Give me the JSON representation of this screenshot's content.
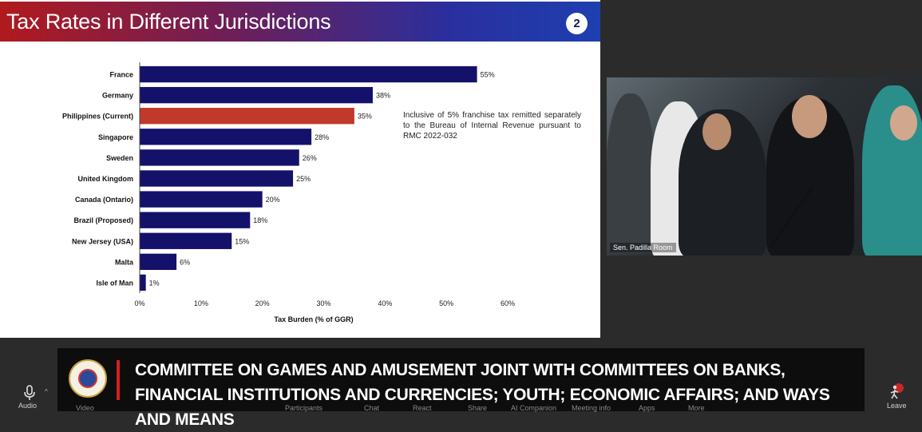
{
  "slide": {
    "title": "Tax Rates in Different Jurisdictions",
    "number": "2",
    "note": "Inclusive of 5% franchise tax remitted separately to the Bureau of Internal Revenue pursuant to RMC 2022-032"
  },
  "chart_data": {
    "type": "bar",
    "orientation": "horizontal",
    "categories": [
      "France",
      "Germany",
      "Philippines (Current)",
      "Singapore",
      "Sweden",
      "United Kingdom",
      "Canada (Ontario)",
      "Brazil (Proposed)",
      "New Jersey (USA)",
      "Malta",
      "Isle of Man"
    ],
    "values": [
      55,
      38,
      35,
      28,
      26,
      25,
      20,
      18,
      15,
      6,
      1
    ],
    "value_labels": [
      "55%",
      "38%",
      "35%",
      "28%",
      "26%",
      "25%",
      "20%",
      "18%",
      "15%",
      "6%",
      "1%"
    ],
    "highlight_index": 2,
    "xlabel": "Tax Burden (% of GGR)",
    "xlim": [
      0,
      60
    ],
    "xticks": [
      0,
      10,
      20,
      30,
      40,
      50,
      60
    ],
    "xtick_labels": [
      "0%",
      "10%",
      "20%",
      "30%",
      "40%",
      "50%",
      "60%"
    ],
    "grid": false,
    "colors": {
      "bar": "#14116b",
      "highlight": "#c0392b"
    }
  },
  "video": {
    "room_label": "Sen. Padilla Room"
  },
  "banner": {
    "text": "COMMITTEE ON GAMES AND AMUSEMENT JOINT WITH COMMITTEES ON BANKS, FINANCIAL INSTITUTIONS AND CURRENCIES; YOUTH; ECONOMIC AFFAIRS; AND WAYS AND MEANS"
  },
  "toolbar": {
    "audio": "Audio",
    "video": "Video",
    "participants": "Participants",
    "chat": "Chat",
    "react": "React",
    "share": "Share",
    "ai_companion": "AI Companion",
    "meeting_info": "Meeting info",
    "apps": "Apps",
    "more": "More",
    "leave": "Leave"
  }
}
